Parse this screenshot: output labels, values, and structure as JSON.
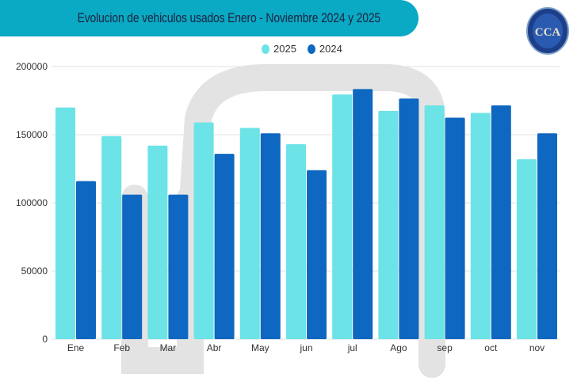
{
  "header": {
    "title": "Evolucion de vehiculos usados Enero - Noviembre 2024 y 2025"
  },
  "logo": {
    "text": "CCA",
    "ring_text": "CAMARA DEL COMERCIO AUTOMOTOR"
  },
  "chart_data": {
    "type": "bar",
    "title": "Evolucion de vehiculos usados Enero - Noviembre 2024 y 2025",
    "categories": [
      "Ene",
      "Feb",
      "Mar",
      "Abr",
      "May",
      "jun",
      "jul",
      "Ago",
      "sep",
      "oct",
      "nov"
    ],
    "series": [
      {
        "name": "2025",
        "color": "#6ce3e6",
        "values": [
          170000,
          149000,
          142000,
          159000,
          155000,
          143000,
          179500,
          167500,
          171500,
          166000,
          132000
        ]
      },
      {
        "name": "2024",
        "color": "#0e67c0",
        "values": [
          116000,
          106000,
          106000,
          136000,
          151000,
          124000,
          183500,
          176500,
          162500,
          171500,
          151000
        ]
      }
    ],
    "ylim": [
      0,
      200000
    ],
    "yticks": [
      0,
      50000,
      100000,
      150000,
      200000
    ],
    "xlabel": "",
    "ylabel": "",
    "grid": true,
    "legend": "top-center"
  }
}
